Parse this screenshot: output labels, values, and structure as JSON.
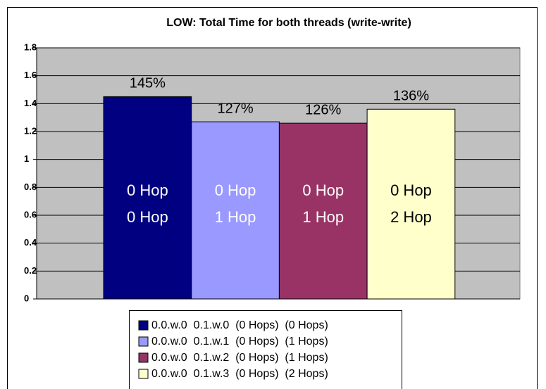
{
  "chart_data": {
    "type": "bar",
    "title": "LOW: Total Time for both threads (write-write)",
    "series": [
      {
        "name": "0.0.w.0  0.1.w.0  (0 Hops)  (0 Hops)",
        "color": "#000080",
        "text_color": "#ffffff",
        "values": [
          1.45
        ],
        "value_labels": [
          "145%"
        ],
        "inner_label": [
          "0 Hop",
          "0 Hop"
        ]
      },
      {
        "name": "0.0.w.0  0.1.w.1  (0 Hops)  (1 Hops)",
        "color": "#9999ff",
        "text_color": "#ffffff",
        "values": [
          1.27
        ],
        "value_labels": [
          "127%"
        ],
        "inner_label": [
          "0 Hop",
          "1 Hop"
        ]
      },
      {
        "name": "0.0.w.0  0.1.w.2  (0 Hops)  (1 Hops)",
        "color": "#993366",
        "text_color": "#ffffff",
        "values": [
          1.26
        ],
        "value_labels": [
          "126%"
        ],
        "inner_label": [
          "0 Hop",
          "1 Hop"
        ]
      },
      {
        "name": "0.0.w.0  0.1.w.3  (0 Hops)  (2 Hops)",
        "color": "#ffffcc",
        "text_color": "#000000",
        "values": [
          1.36
        ],
        "value_labels": [
          "136%"
        ],
        "inner_label": [
          "0 Hop",
          "2 Hop"
        ]
      }
    ],
    "ylim": [
      0,
      1.8
    ],
    "yticks": [
      0,
      0.2,
      0.4,
      0.6,
      0.8,
      1,
      1.2,
      1.4,
      1.6,
      1.8
    ],
    "grid": true,
    "legend": "bottom",
    "plot_background": "#c0c0c0"
  }
}
